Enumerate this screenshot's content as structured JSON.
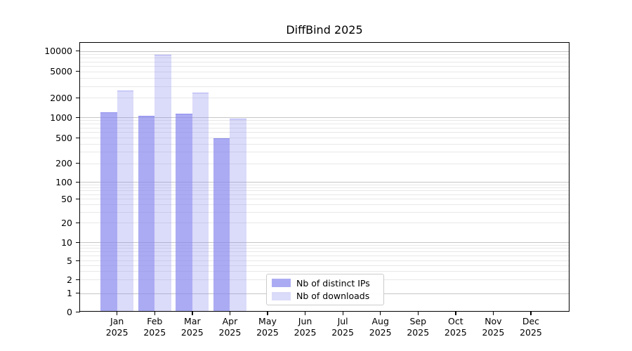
{
  "chart_data": {
    "type": "bar",
    "title": "DiffBind 2025",
    "categories": [
      "Jan 2025",
      "Feb 2025",
      "Mar 2025",
      "Apr 2025",
      "May 2025",
      "Jun 2025",
      "Jul 2025",
      "Aug 2025",
      "Sep 2025",
      "Oct 2025",
      "Nov 2025",
      "Dec 2025"
    ],
    "series": [
      {
        "name": "Nb of distinct IPs",
        "key": "distinct-ips",
        "color": "#8888ee",
        "alpha": 0.7,
        "values": [
          1200,
          1050,
          1140,
          490,
          0,
          0,
          0,
          0,
          0,
          0,
          0,
          0
        ]
      },
      {
        "name": "Nb of downloads",
        "key": "downloads",
        "color": "#8888ee",
        "alpha": 0.3,
        "values": [
          2600,
          8800,
          2400,
          950,
          0,
          0,
          0,
          0,
          0,
          0,
          0,
          0
        ]
      }
    ],
    "yscale": "log-like-with-zero",
    "yticks": [
      0,
      1,
      2,
      5,
      10,
      20,
      50,
      100,
      200,
      500,
      1000,
      2000,
      5000,
      10000
    ],
    "ylim": [
      0,
      10000
    ],
    "xlabel": "",
    "ylabel": "",
    "grid": true,
    "legend_position": "lower center",
    "colors": {
      "major_grid": "#c6c6c6",
      "minor_grid": "#e8e8e8",
      "frame": "#000000",
      "legend_border": "#cccccc"
    }
  }
}
